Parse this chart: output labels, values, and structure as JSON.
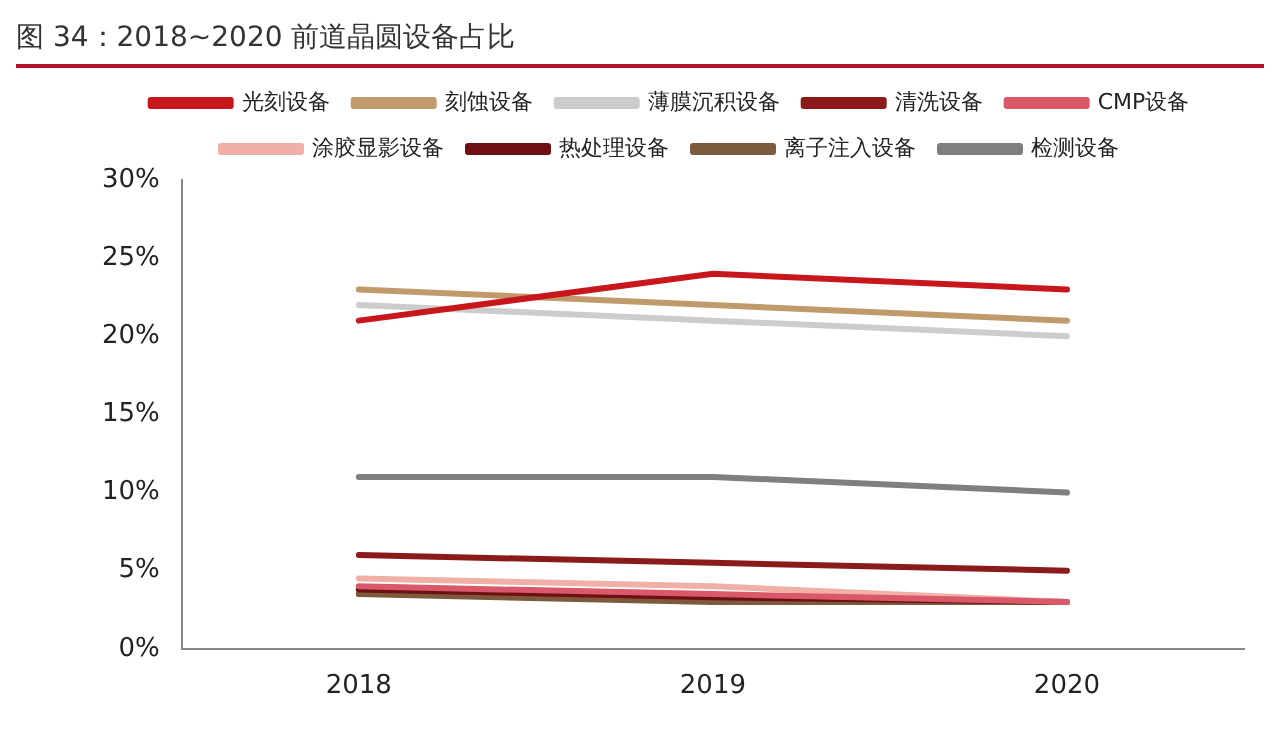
{
  "chart_data": {
    "type": "line",
    "title": "图 34：2018~2020 前道晶圆设备占比",
    "categories": [
      "2018",
      "2019",
      "2020"
    ],
    "series": [
      {
        "name": "光刻设备",
        "color": "#c8161d",
        "values": [
          21,
          24,
          23
        ]
      },
      {
        "name": "刻蚀设备",
        "color": "#c19a6b",
        "values": [
          23,
          22,
          21
        ]
      },
      {
        "name": "薄膜沉积设备",
        "color": "#cccccc",
        "values": [
          22,
          21,
          20
        ]
      },
      {
        "name": "清洗设备",
        "color": "#8b1a1a",
        "values": [
          6,
          5.5,
          5
        ]
      },
      {
        "name": "CMP设备",
        "color": "#d9596a",
        "values": [
          4,
          3.5,
          3
        ]
      },
      {
        "name": "涂胶显影设备",
        "color": "#f0b0a8",
        "values": [
          4.5,
          4,
          3
        ]
      },
      {
        "name": "热处理设备",
        "color": "#6e0f14",
        "values": [
          3.8,
          3.3,
          3
        ]
      },
      {
        "name": "离子注入设备",
        "color": "#7d5a3c",
        "values": [
          3.5,
          3,
          3
        ]
      },
      {
        "name": "检测设备",
        "color": "#7f7f7f",
        "values": [
          11,
          11,
          10
        ]
      }
    ],
    "ylim": [
      0,
      30
    ],
    "yticks": [
      {
        "value": 0,
        "label": "0%"
      },
      {
        "value": 5,
        "label": "5%"
      },
      {
        "value": 10,
        "label": "10%"
      },
      {
        "value": 15,
        "label": "15%"
      },
      {
        "value": 20,
        "label": "20%"
      },
      {
        "value": 25,
        "label": "25%"
      },
      {
        "value": 30,
        "label": "30%"
      }
    ],
    "grid": false,
    "legend": "top",
    "marker": "none",
    "line_style": "solid"
  }
}
